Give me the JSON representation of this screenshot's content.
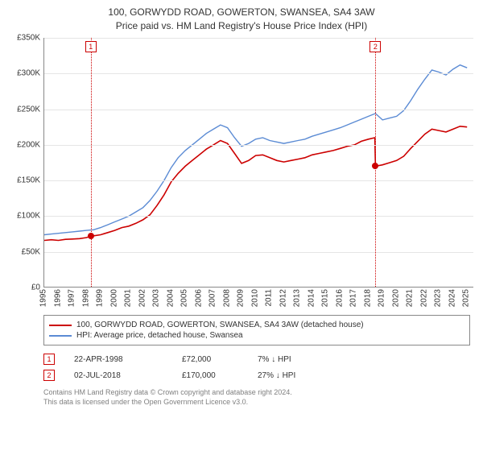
{
  "title": "100, GORWYDD ROAD, GOWERTON, SWANSEA, SA4 3AW",
  "subtitle": "Price paid vs. HM Land Registry's House Price Index (HPI)",
  "chart": {
    "type": "line",
    "background_color": "#ffffff",
    "grid_color": "#e5e5e5",
    "axis_color": "#888888",
    "label_fontsize": 10,
    "title_fontsize": 12,
    "ylim": [
      0,
      350000
    ],
    "ytick_step": 50000,
    "ytick_labels": [
      "£0",
      "£50K",
      "£100K",
      "£150K",
      "£200K",
      "£250K",
      "£300K",
      "£350K"
    ],
    "xlim": [
      1995,
      2025.5
    ],
    "xticks": [
      1995,
      1996,
      1997,
      1998,
      1999,
      2000,
      2001,
      2002,
      2003,
      2004,
      2005,
      2006,
      2007,
      2008,
      2009,
      2010,
      2011,
      2012,
      2013,
      2014,
      2015,
      2016,
      2017,
      2018,
      2019,
      2020,
      2021,
      2022,
      2023,
      2024,
      2025
    ],
    "series": [
      {
        "name": "property_price",
        "color": "#cc0000",
        "line_width": 1.6,
        "points": [
          [
            1995.0,
            66000
          ],
          [
            1995.5,
            67000
          ],
          [
            1996.0,
            66000
          ],
          [
            1996.5,
            67500
          ],
          [
            1997.0,
            68000
          ],
          [
            1997.5,
            68500
          ],
          [
            1998.0,
            70000
          ],
          [
            1998.3,
            72000
          ],
          [
            1998.5,
            72500
          ],
          [
            1999.0,
            74000
          ],
          [
            1999.5,
            77000
          ],
          [
            2000.0,
            80000
          ],
          [
            2000.5,
            84000
          ],
          [
            2001.0,
            86000
          ],
          [
            2001.5,
            90000
          ],
          [
            2002.0,
            95000
          ],
          [
            2002.5,
            102000
          ],
          [
            2003.0,
            115000
          ],
          [
            2003.5,
            130000
          ],
          [
            2004.0,
            148000
          ],
          [
            2004.5,
            160000
          ],
          [
            2005.0,
            170000
          ],
          [
            2005.5,
            178000
          ],
          [
            2006.0,
            186000
          ],
          [
            2006.5,
            194000
          ],
          [
            2007.0,
            200000
          ],
          [
            2007.5,
            206000
          ],
          [
            2008.0,
            202000
          ],
          [
            2008.5,
            188000
          ],
          [
            2009.0,
            174000
          ],
          [
            2009.5,
            178000
          ],
          [
            2010.0,
            185000
          ],
          [
            2010.5,
            186000
          ],
          [
            2011.0,
            182000
          ],
          [
            2011.5,
            178000
          ],
          [
            2012.0,
            176000
          ],
          [
            2012.5,
            178000
          ],
          [
            2013.0,
            180000
          ],
          [
            2013.5,
            182000
          ],
          [
            2014.0,
            186000
          ],
          [
            2014.5,
            188000
          ],
          [
            2015.0,
            190000
          ],
          [
            2015.5,
            192000
          ],
          [
            2016.0,
            195000
          ],
          [
            2016.5,
            198000
          ],
          [
            2017.0,
            200000
          ],
          [
            2017.5,
            205000
          ],
          [
            2018.0,
            208000
          ],
          [
            2018.45,
            210000
          ],
          [
            2018.5,
            170000
          ],
          [
            2019.0,
            172000
          ],
          [
            2019.5,
            175000
          ],
          [
            2020.0,
            178000
          ],
          [
            2020.5,
            184000
          ],
          [
            2021.0,
            195000
          ],
          [
            2021.5,
            205000
          ],
          [
            2022.0,
            215000
          ],
          [
            2022.5,
            222000
          ],
          [
            2023.0,
            220000
          ],
          [
            2023.5,
            218000
          ],
          [
            2024.0,
            222000
          ],
          [
            2024.5,
            226000
          ],
          [
            2025.0,
            225000
          ]
        ]
      },
      {
        "name": "hpi_swansea_detached",
        "color": "#5b8bd4",
        "line_width": 1.4,
        "points": [
          [
            1995.0,
            74000
          ],
          [
            1995.5,
            75000
          ],
          [
            1996.0,
            76000
          ],
          [
            1996.5,
            77000
          ],
          [
            1997.0,
            78000
          ],
          [
            1997.5,
            79000
          ],
          [
            1998.0,
            80000
          ],
          [
            1998.5,
            81000
          ],
          [
            1999.0,
            84000
          ],
          [
            1999.5,
            88000
          ],
          [
            2000.0,
            92000
          ],
          [
            2000.5,
            96000
          ],
          [
            2001.0,
            100000
          ],
          [
            2001.5,
            106000
          ],
          [
            2002.0,
            112000
          ],
          [
            2002.5,
            122000
          ],
          [
            2003.0,
            135000
          ],
          [
            2003.5,
            150000
          ],
          [
            2004.0,
            168000
          ],
          [
            2004.5,
            182000
          ],
          [
            2005.0,
            192000
          ],
          [
            2005.5,
            200000
          ],
          [
            2006.0,
            208000
          ],
          [
            2006.5,
            216000
          ],
          [
            2007.0,
            222000
          ],
          [
            2007.5,
            228000
          ],
          [
            2008.0,
            224000
          ],
          [
            2008.5,
            210000
          ],
          [
            2009.0,
            198000
          ],
          [
            2009.5,
            202000
          ],
          [
            2010.0,
            208000
          ],
          [
            2010.5,
            210000
          ],
          [
            2011.0,
            206000
          ],
          [
            2011.5,
            204000
          ],
          [
            2012.0,
            202000
          ],
          [
            2012.5,
            204000
          ],
          [
            2013.0,
            206000
          ],
          [
            2013.5,
            208000
          ],
          [
            2014.0,
            212000
          ],
          [
            2014.5,
            215000
          ],
          [
            2015.0,
            218000
          ],
          [
            2015.5,
            221000
          ],
          [
            2016.0,
            224000
          ],
          [
            2016.5,
            228000
          ],
          [
            2017.0,
            232000
          ],
          [
            2017.5,
            236000
          ],
          [
            2018.0,
            240000
          ],
          [
            2018.5,
            244000
          ],
          [
            2019.0,
            235000
          ],
          [
            2019.5,
            237500
          ],
          [
            2020.0,
            240000
          ],
          [
            2020.5,
            248000
          ],
          [
            2021.0,
            262000
          ],
          [
            2021.5,
            278000
          ],
          [
            2022.0,
            292000
          ],
          [
            2022.5,
            305000
          ],
          [
            2023.0,
            302000
          ],
          [
            2023.5,
            298000
          ],
          [
            2024.0,
            306000
          ],
          [
            2024.5,
            312000
          ],
          [
            2025.0,
            308000
          ]
        ]
      }
    ],
    "markers": [
      {
        "x": 1998.3,
        "y": 72000,
        "color": "#cc0000"
      },
      {
        "x": 2018.5,
        "y": 170000,
        "color": "#cc0000"
      }
    ],
    "events": [
      {
        "num": "1",
        "x": 1998.3
      },
      {
        "num": "2",
        "x": 2018.5
      }
    ]
  },
  "legend": {
    "items": [
      {
        "color": "#cc0000",
        "label": "100, GORWYDD ROAD, GOWERTON, SWANSEA, SA4 3AW (detached house)"
      },
      {
        "color": "#5b8bd4",
        "label": "HPI: Average price, detached house, Swansea"
      }
    ]
  },
  "events_table": [
    {
      "num": "1",
      "date": "22-APR-1998",
      "price": "£72,000",
      "pct": "7% ↓ HPI"
    },
    {
      "num": "2",
      "date": "02-JUL-2018",
      "price": "£170,000",
      "pct": "27% ↓ HPI"
    }
  ],
  "footer": {
    "line1": "Contains HM Land Registry data © Crown copyright and database right 2024.",
    "line2": "This data is licensed under the Open Government Licence v3.0."
  }
}
